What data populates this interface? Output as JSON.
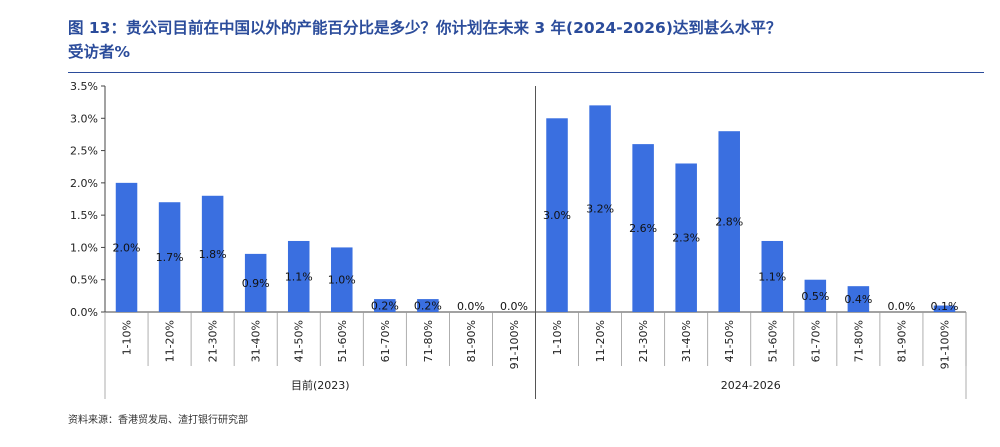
{
  "title": {
    "line1": "图 13：贵公司目前在中国以外的产能百分比是多少？你计划在未来 3 年(2024-2026)达到甚么水平？",
    "line2": "受访者%"
  },
  "source": "资料来源：香港贸发局、渣打银行研究部",
  "colors": {
    "bar": "#3a6fe0",
    "title": "#2b4c9b",
    "axis": "#444444"
  },
  "chart_data": {
    "type": "bar",
    "title": "贵公司目前在中国以外的产能百分比是多少？你计划在未来 3 年(2024-2026)达到甚么水平？",
    "ylabel": "受访者%",
    "ylim": [
      0,
      3.5
    ],
    "yticks": [
      "0.0%",
      "0.5%",
      "1.0%",
      "1.5%",
      "2.0%",
      "2.5%",
      "3.0%",
      "3.5%"
    ],
    "ytick_values": [
      0,
      0.5,
      1.0,
      1.5,
      2.0,
      2.5,
      3.0,
      3.5
    ],
    "groups": [
      {
        "name": "目前(2023)",
        "categories": [
          "1-10%",
          "11-20%",
          "21-30%",
          "31-40%",
          "41-50%",
          "51-60%",
          "61-70%",
          "71-80%",
          "81-90%",
          "91-100%"
        ],
        "values": [
          2.0,
          1.7,
          1.8,
          0.9,
          1.1,
          1.0,
          0.2,
          0.2,
          0.0,
          0.0
        ],
        "labels": [
          "2.0%",
          "1.7%",
          "1.8%",
          "0.9%",
          "1.1%",
          "1.0%",
          "0.2%",
          "0.2%",
          "0.0%",
          "0.0%"
        ]
      },
      {
        "name": "2024-2026",
        "categories": [
          "1-10%",
          "11-20%",
          "21-30%",
          "31-40%",
          "41-50%",
          "51-60%",
          "61-70%",
          "71-80%",
          "81-90%",
          "91-100%"
        ],
        "values": [
          3.0,
          3.2,
          2.6,
          2.3,
          2.8,
          1.1,
          0.5,
          0.4,
          0.0,
          0.1
        ],
        "labels": [
          "3.0%",
          "3.2%",
          "2.6%",
          "2.3%",
          "2.8%",
          "1.1%",
          "0.5%",
          "0.4%",
          "0.0%",
          "0.1%"
        ]
      }
    ]
  }
}
